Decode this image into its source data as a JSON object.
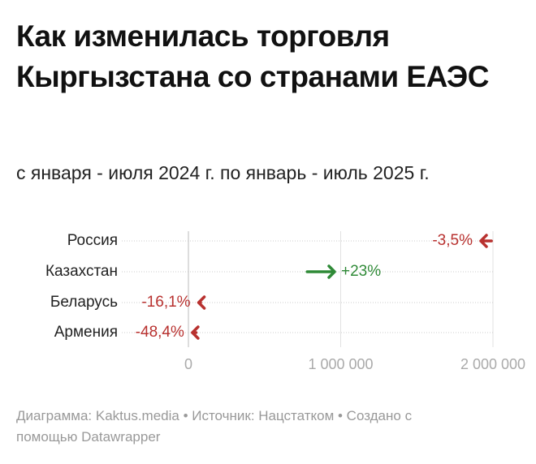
{
  "chart_data": {
    "type": "arrow",
    "title": "Как изменилась торговля Кыргызстана со странами ЕАЭС",
    "subtitle": "с января - июля 2024 г. по январь - июль 2025 г.",
    "categories": [
      "Россия",
      "Казахстан",
      "Беларусь",
      "Армения"
    ],
    "x_start": [
      1990000,
      780000,
      80000,
      50000
    ],
    "x_end": [
      1920000,
      960000,
      67000,
      26000
    ],
    "change": [
      -3.5,
      23,
      -16.1,
      -48.4
    ],
    "change_labels": [
      "-3,5%",
      "+23%",
      "-16,1%",
      "-48,4%"
    ],
    "negative_color": "#b8312f",
    "positive_color": "#2f8a37",
    "xlim": [
      0,
      2000000
    ],
    "xticks": [
      0,
      {
        "value": 1000000,
        "label": "1 000 000"
      },
      {
        "value": 2000000,
        "label": "2 000 000"
      }
    ],
    "grid": true,
    "footer": "Диаграмма: Kaktus.media • Источник: Нацстатком • Создано с помощью Datawrapper"
  }
}
